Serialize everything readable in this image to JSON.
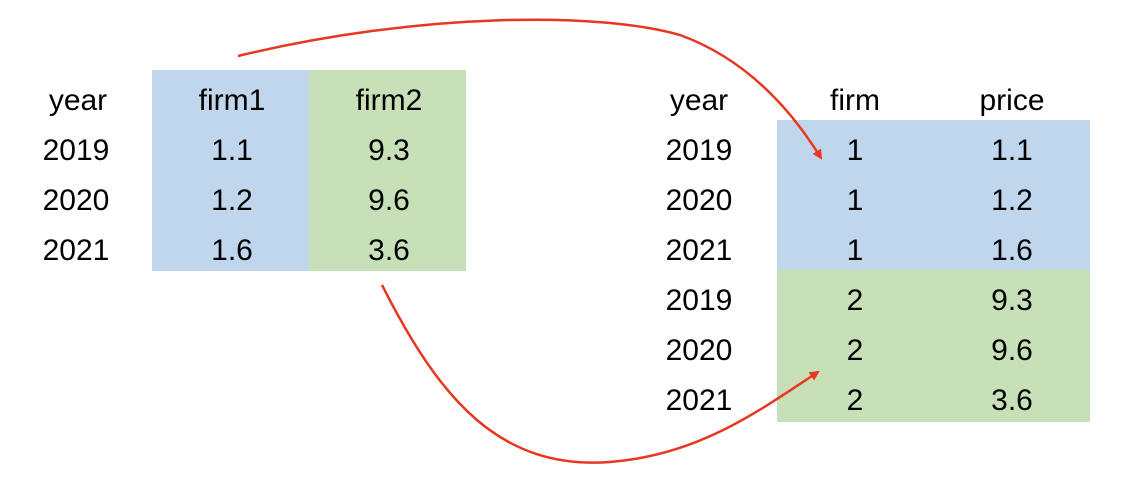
{
  "wide_table": {
    "headers": [
      "year",
      "firm1",
      "firm2"
    ],
    "rows": [
      [
        "2019",
        "1.1",
        "9.3"
      ],
      [
        "2020",
        "1.2",
        "9.6"
      ],
      [
        "2021",
        "1.6",
        "3.6"
      ]
    ]
  },
  "long_table": {
    "headers": [
      "year",
      "firm",
      "price"
    ],
    "rows": [
      [
        "2019",
        "1",
        "1.1"
      ],
      [
        "2020",
        "1",
        "1.2"
      ],
      [
        "2021",
        "1",
        "1.6"
      ],
      [
        "2019",
        "2",
        "9.3"
      ],
      [
        "2020",
        "2",
        "9.6"
      ],
      [
        "2021",
        "2",
        "3.6"
      ]
    ]
  },
  "colors": {
    "firm1_fill": "#c0d6ec",
    "firm2_fill": "#c7e0b8",
    "arrow": "#e8361f"
  }
}
